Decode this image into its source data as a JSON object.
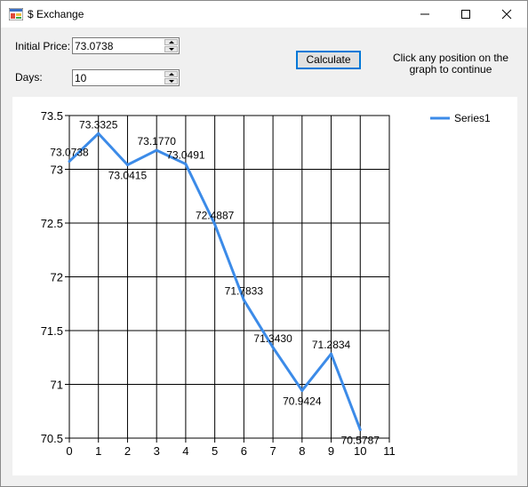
{
  "window": {
    "title": "$ Exchange"
  },
  "controls": {
    "initial_price_label": "Initial Price:",
    "initial_price_value": "73.0738",
    "days_label": "Days:",
    "days_value": "10",
    "calculate_label": "Calculate",
    "hint": "Click any position on the graph to continue"
  },
  "chart_data": {
    "type": "line",
    "x": [
      0,
      1,
      2,
      3,
      4,
      5,
      6,
      7,
      8,
      9,
      10
    ],
    "series": [
      {
        "name": "Series1",
        "color": "#3c8be8",
        "values": [
          73.0738,
          73.3325,
          73.0415,
          73.177,
          73.0491,
          72.4887,
          71.7833,
          71.343,
          70.9424,
          71.2834,
          70.5787
        ],
        "labels": [
          "73.0738",
          "73.3325",
          "73.0415",
          "73.1770",
          "73.0491",
          "72.4887",
          "71.7833",
          "71.3430",
          "70.9424",
          "71.2834",
          "70.5787"
        ]
      }
    ],
    "xlim": [
      0,
      11
    ],
    "ylim": [
      70.5,
      73.5
    ],
    "x_ticks": [
      "0",
      "1",
      "2",
      "3",
      "4",
      "5",
      "6",
      "7",
      "8",
      "9",
      "10",
      "11"
    ],
    "y_ticks": [
      "70.5",
      "71",
      "71.5",
      "72",
      "72.5",
      "73",
      "73.5"
    ],
    "grid": true,
    "legend": "top-right"
  }
}
